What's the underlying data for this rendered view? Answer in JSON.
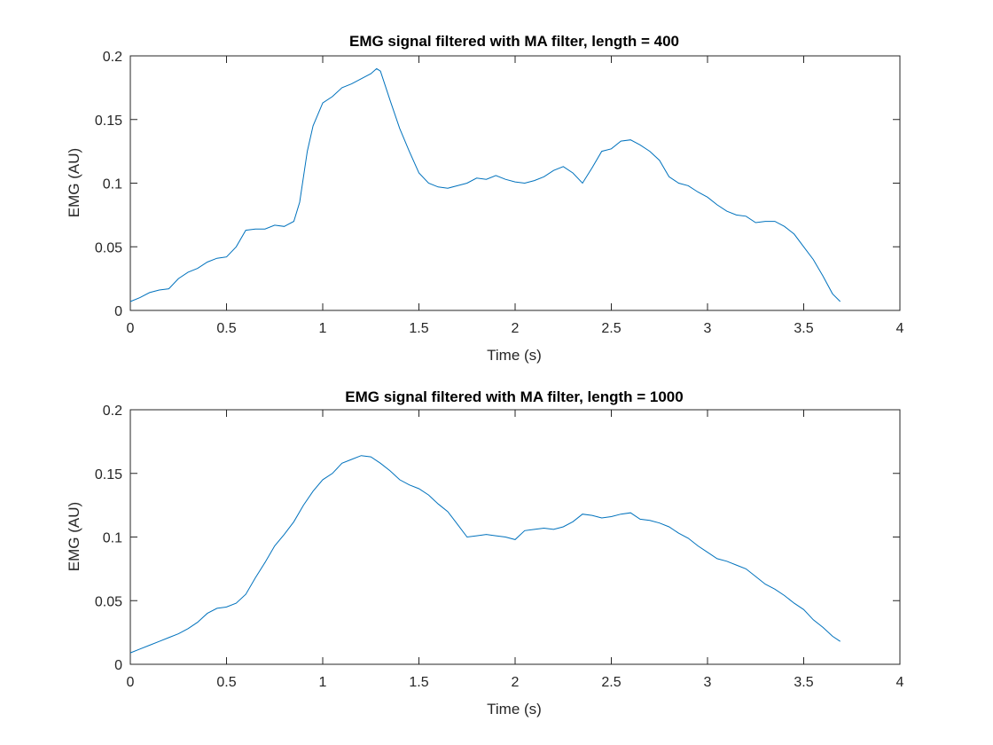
{
  "chart_data": [
    {
      "type": "line",
      "title": "EMG signal filtered with MA filter, length = 400",
      "xlabel": "Time (s)",
      "ylabel": "EMG (AU)",
      "xlim": [
        0,
        4
      ],
      "ylim": [
        0,
        0.2
      ],
      "xticks": [
        "0",
        "0.5",
        "1",
        "1.5",
        "2",
        "2.5",
        "3",
        "3.5",
        "4"
      ],
      "yticks": [
        "0",
        "0.05",
        "0.1",
        "0.15",
        "0.2"
      ],
      "grid": false,
      "color": "#0072BD",
      "series": [
        {
          "x": [
            0,
            0.05,
            0.1,
            0.15,
            0.2,
            0.25,
            0.3,
            0.35,
            0.4,
            0.45,
            0.5,
            0.55,
            0.6,
            0.65,
            0.7,
            0.75,
            0.8,
            0.85,
            0.88,
            0.9,
            0.92,
            0.95,
            1.0,
            1.05,
            1.1,
            1.15,
            1.2,
            1.25,
            1.28,
            1.3,
            1.35,
            1.4,
            1.45,
            1.5,
            1.55,
            1.6,
            1.65,
            1.7,
            1.75,
            1.8,
            1.85,
            1.9,
            1.95,
            2.0,
            2.05,
            2.1,
            2.15,
            2.2,
            2.25,
            2.3,
            2.35,
            2.4,
            2.45,
            2.5,
            2.55,
            2.6,
            2.65,
            2.7,
            2.75,
            2.8,
            2.85,
            2.9,
            2.95,
            3.0,
            3.05,
            3.1,
            3.15,
            3.2,
            3.25,
            3.3,
            3.35,
            3.4,
            3.45,
            3.5,
            3.55,
            3.6,
            3.65,
            3.69
          ],
          "y": [
            0.007,
            0.01,
            0.014,
            0.016,
            0.017,
            0.025,
            0.03,
            0.033,
            0.038,
            0.041,
            0.042,
            0.05,
            0.063,
            0.064,
            0.064,
            0.067,
            0.066,
            0.07,
            0.085,
            0.105,
            0.125,
            0.145,
            0.163,
            0.168,
            0.175,
            0.178,
            0.182,
            0.186,
            0.19,
            0.188,
            0.165,
            0.143,
            0.125,
            0.108,
            0.1,
            0.097,
            0.096,
            0.098,
            0.1,
            0.104,
            0.103,
            0.106,
            0.103,
            0.101,
            0.1,
            0.102,
            0.105,
            0.11,
            0.113,
            0.108,
            0.1,
            0.112,
            0.125,
            0.127,
            0.133,
            0.134,
            0.13,
            0.125,
            0.118,
            0.105,
            0.1,
            0.098,
            0.093,
            0.089,
            0.083,
            0.078,
            0.075,
            0.074,
            0.069,
            0.07,
            0.07,
            0.066,
            0.06,
            0.05,
            0.04,
            0.027,
            0.013,
            0.007
          ]
        }
      ]
    },
    {
      "type": "line",
      "title": "EMG signal filtered with MA filter, length = 1000",
      "xlabel": "Time (s)",
      "ylabel": "EMG (AU)",
      "xlim": [
        0,
        4
      ],
      "ylim": [
        0,
        0.2
      ],
      "xticks": [
        "0",
        "0.5",
        "1",
        "1.5",
        "2",
        "2.5",
        "3",
        "3.5",
        "4"
      ],
      "yticks": [
        "0",
        "0.05",
        "0.1",
        "0.15",
        "0.2"
      ],
      "grid": false,
      "color": "#0072BD",
      "series": [
        {
          "x": [
            0,
            0.05,
            0.1,
            0.15,
            0.2,
            0.25,
            0.3,
            0.35,
            0.4,
            0.45,
            0.5,
            0.55,
            0.6,
            0.65,
            0.7,
            0.75,
            0.8,
            0.85,
            0.9,
            0.95,
            1.0,
            1.05,
            1.1,
            1.15,
            1.2,
            1.25,
            1.3,
            1.35,
            1.4,
            1.45,
            1.5,
            1.55,
            1.6,
            1.65,
            1.7,
            1.75,
            1.8,
            1.85,
            1.9,
            1.95,
            2.0,
            2.05,
            2.1,
            2.15,
            2.2,
            2.25,
            2.3,
            2.35,
            2.4,
            2.45,
            2.5,
            2.55,
            2.6,
            2.65,
            2.7,
            2.75,
            2.8,
            2.85,
            2.9,
            2.95,
            3.0,
            3.05,
            3.1,
            3.15,
            3.2,
            3.25,
            3.3,
            3.35,
            3.4,
            3.45,
            3.5,
            3.55,
            3.6,
            3.65,
            3.69
          ],
          "y": [
            0.009,
            0.012,
            0.015,
            0.018,
            0.021,
            0.024,
            0.028,
            0.033,
            0.04,
            0.044,
            0.045,
            0.048,
            0.055,
            0.068,
            0.08,
            0.093,
            0.102,
            0.112,
            0.125,
            0.136,
            0.145,
            0.15,
            0.158,
            0.161,
            0.164,
            0.163,
            0.158,
            0.152,
            0.145,
            0.141,
            0.138,
            0.133,
            0.126,
            0.12,
            0.11,
            0.1,
            0.101,
            0.102,
            0.101,
            0.1,
            0.098,
            0.105,
            0.106,
            0.107,
            0.106,
            0.108,
            0.112,
            0.118,
            0.117,
            0.115,
            0.116,
            0.118,
            0.119,
            0.114,
            0.113,
            0.111,
            0.108,
            0.103,
            0.099,
            0.093,
            0.088,
            0.083,
            0.081,
            0.078,
            0.075,
            0.069,
            0.063,
            0.059,
            0.054,
            0.048,
            0.043,
            0.035,
            0.029,
            0.022,
            0.018
          ]
        }
      ]
    }
  ]
}
